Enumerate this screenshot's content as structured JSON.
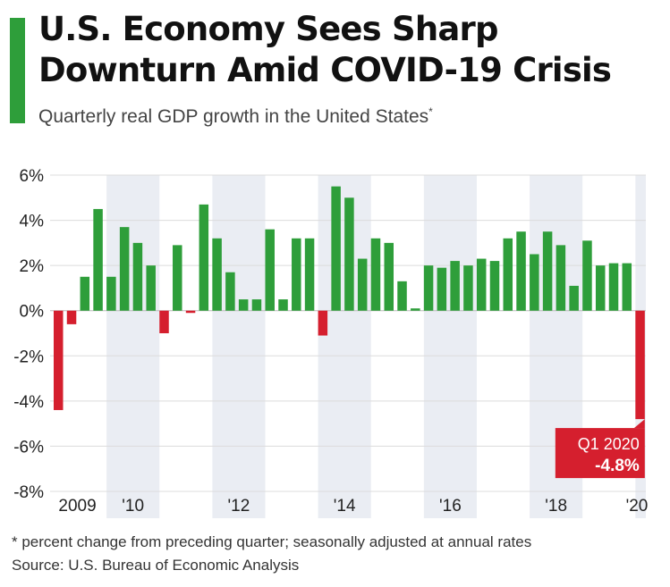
{
  "header": {
    "title_line1": "U.S. Economy Sees Sharp",
    "title_line2": "Downturn Amid COVID-19 Crisis",
    "subtitle": "Quarterly real GDP growth in the United States",
    "subtitle_marker": "*"
  },
  "footer": {
    "footnote": "* percent change from preceding quarter; seasonally adjusted at annual rates",
    "source": "Source: U.S. Bureau of Economic Analysis"
  },
  "colors": {
    "positive": "#2e9e3a",
    "negative": "#d51f2e",
    "band": "#eaedf3",
    "accent": "#2e9e3a"
  },
  "chart_data": {
    "type": "bar",
    "xlabel": "",
    "ylabel": "",
    "ylim": [
      -8,
      6
    ],
    "y_ticks": [
      -8,
      -6,
      -4,
      -2,
      0,
      2,
      4,
      6
    ],
    "y_tick_suffix": "%",
    "grid": true,
    "x_tick_labels": [
      {
        "label": "2009",
        "year": 2009
      },
      {
        "label": "'10",
        "year": 2010
      },
      {
        "label": "'12",
        "year": 2012
      },
      {
        "label": "'14",
        "year": 2014
      },
      {
        "label": "'16",
        "year": 2016
      },
      {
        "label": "'18",
        "year": 2018
      },
      {
        "label": "'20",
        "year": 2020
      }
    ],
    "shaded_years": [
      2010,
      2012,
      2014,
      2016,
      2018,
      2020
    ],
    "quarters": [
      "Q1 2009",
      "Q2 2009",
      "Q3 2009",
      "Q4 2009",
      "Q1 2010",
      "Q2 2010",
      "Q3 2010",
      "Q4 2010",
      "Q1 2011",
      "Q2 2011",
      "Q3 2011",
      "Q4 2011",
      "Q1 2012",
      "Q2 2012",
      "Q3 2012",
      "Q4 2012",
      "Q1 2013",
      "Q2 2013",
      "Q3 2013",
      "Q4 2013",
      "Q1 2014",
      "Q2 2014",
      "Q3 2014",
      "Q4 2014",
      "Q1 2015",
      "Q2 2015",
      "Q3 2015",
      "Q4 2015",
      "Q1 2016",
      "Q2 2016",
      "Q3 2016",
      "Q4 2016",
      "Q1 2017",
      "Q2 2017",
      "Q3 2017",
      "Q4 2017",
      "Q1 2018",
      "Q2 2018",
      "Q3 2018",
      "Q4 2018",
      "Q1 2019",
      "Q2 2019",
      "Q3 2019",
      "Q4 2019",
      "Q1 2020"
    ],
    "values": [
      -4.4,
      -0.6,
      1.5,
      4.5,
      1.5,
      3.7,
      3.0,
      2.0,
      -1.0,
      2.9,
      -0.1,
      4.7,
      3.2,
      1.7,
      0.5,
      0.5,
      3.6,
      0.5,
      3.2,
      3.2,
      -1.1,
      5.5,
      5.0,
      2.3,
      3.2,
      3.0,
      1.3,
      0.1,
      2.0,
      1.9,
      2.2,
      2.0,
      2.3,
      2.2,
      3.2,
      3.5,
      2.5,
      3.5,
      2.9,
      1.1,
      3.1,
      2.0,
      2.1,
      2.1,
      -4.8
    ],
    "annotation": {
      "quarter": "Q1 2020",
      "label": "Q1 2020",
      "value_label": "-4.8%"
    }
  }
}
